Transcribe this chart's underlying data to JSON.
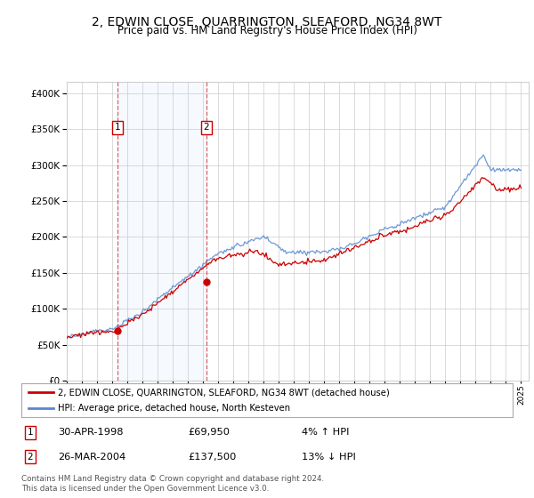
{
  "title": "2, EDWIN CLOSE, QUARRINGTON, SLEAFORD, NG34 8WT",
  "subtitle": "Price paid vs. HM Land Registry's House Price Index (HPI)",
  "ytick_values": [
    0,
    50000,
    100000,
    150000,
    200000,
    250000,
    300000,
    350000,
    400000
  ],
  "ylim": [
    0,
    415000
  ],
  "xlim_start": 1995.0,
  "xlim_end": 2025.5,
  "sale1": {
    "date_year": 1998.33,
    "price": 69950,
    "label": "1",
    "date_str": "30-APR-1998",
    "price_str": "£69,950",
    "hpi_str": "4% ↑ HPI"
  },
  "sale2": {
    "date_year": 2004.23,
    "price": 137500,
    "label": "2",
    "date_str": "26-MAR-2004",
    "price_str": "£137,500",
    "hpi_str": "13% ↓ HPI"
  },
  "legend_line1": "2, EDWIN CLOSE, QUARRINGTON, SLEAFORD, NG34 8WT (detached house)",
  "legend_line2": "HPI: Average price, detached house, North Kesteven",
  "footer": "Contains HM Land Registry data © Crown copyright and database right 2024.\nThis data is licensed under the Open Government Licence v3.0.",
  "sale_line_color": "#cc0000",
  "hpi_line_color": "#5588cc",
  "background_color": "#ffffff",
  "grid_color": "#cccccc"
}
